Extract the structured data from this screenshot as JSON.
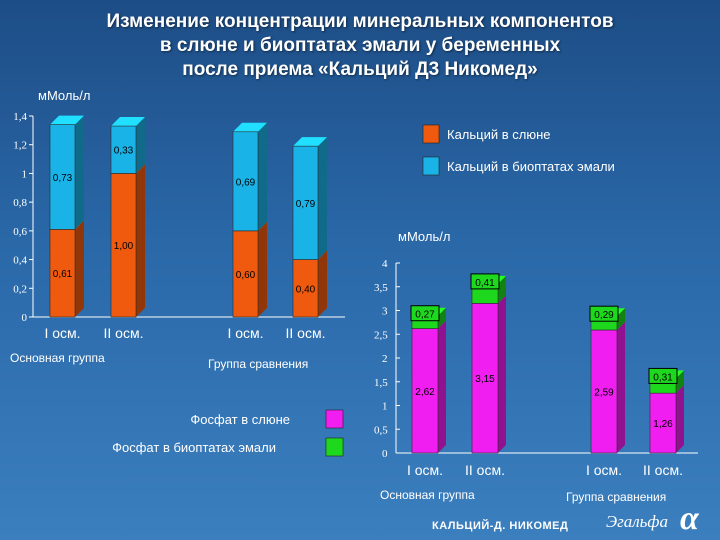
{
  "title_lines": [
    "Изменение концентрации минеральных компонентов",
    "в слюне и биоптатах эмали у беременных",
    "после приема «Кальций Д3 Никомед»"
  ],
  "footer": {
    "brand": "КАЛЬЦИЙ-Д",
    "brand_suffix": "НИКОМЕД",
    "logo": "Эгальфа",
    "mark": "α"
  },
  "colors": {
    "calcium_saliva": "#f05a0f",
    "calcium_enamel": "#1ab3e8",
    "phosphate_saliva": "#f01ef0",
    "phosphate_enamel": "#1ed81e"
  },
  "chart_data": [
    {
      "type": "bar",
      "stacked": true,
      "ylabel": "мМоль/л",
      "ylim": [
        0,
        1.4
      ],
      "yticks": [
        "0",
        "0,2",
        "0,4",
        "0,6",
        "0,8",
        "1",
        "1,2",
        "1,4"
      ],
      "categories": [
        "I осм.",
        "II осм.",
        "I осм.",
        "II осм."
      ],
      "groups": [
        "Основная группа",
        "Группа сравнения"
      ],
      "series": [
        {
          "name": "Кальций в слюне",
          "values": [
            0.61,
            1.0,
            0.6,
            0.4
          ],
          "labels": [
            "0,61",
            "1,00",
            "0,60",
            "0,40"
          ]
        },
        {
          "name": "Кальций в биоптатах эмали",
          "values": [
            0.73,
            0.33,
            0.69,
            0.79
          ],
          "labels": [
            "0,73",
            "0,33",
            "0,69",
            "0,79"
          ]
        }
      ],
      "legend": "top-right"
    },
    {
      "type": "bar",
      "stacked": true,
      "ylabel": "мМоль/л",
      "ylim": [
        0,
        4
      ],
      "yticks": [
        "0",
        "0,5",
        "1",
        "1,5",
        "2",
        "2,5",
        "3",
        "3,5",
        "4"
      ],
      "categories": [
        "I осм.",
        "II осм.",
        "I осм.",
        "II осм."
      ],
      "groups": [
        "Основная группа",
        "Группа сравнения"
      ],
      "series": [
        {
          "name": "Фосфат в слюне",
          "values": [
            2.62,
            3.15,
            2.59,
            1.26
          ],
          "labels": [
            "2,62",
            "3,15",
            "2,59",
            "1,26"
          ]
        },
        {
          "name": "Фосфат в биоптатах эмали",
          "values": [
            0.27,
            0.41,
            0.29,
            0.31
          ],
          "labels": [
            "0,27",
            "0,41",
            "0,29",
            "0,31"
          ]
        }
      ],
      "legend": "left"
    }
  ]
}
